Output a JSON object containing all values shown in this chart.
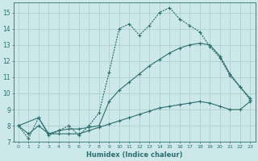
{
  "xlabel": "Humidex (Indice chaleur)",
  "bg_color": "#cce8e8",
  "grid_color": "#aacccc",
  "line_color": "#2d6e6e",
  "xlim": [
    -0.5,
    23.5
  ],
  "ylim": [
    7.0,
    15.6
  ],
  "xticks": [
    0,
    1,
    2,
    3,
    4,
    5,
    6,
    7,
    8,
    9,
    10,
    11,
    12,
    13,
    14,
    15,
    16,
    17,
    18,
    19,
    20,
    21,
    22,
    23
  ],
  "yticks": [
    7,
    8,
    9,
    10,
    11,
    12,
    13,
    14,
    15
  ],
  "series1_x": [
    0,
    1,
    2,
    3,
    4,
    5,
    6,
    7,
    8,
    9,
    10,
    11,
    12,
    13,
    14,
    15,
    16,
    17,
    18,
    19,
    20,
    21,
    22,
    23
  ],
  "series1_y": [
    8.0,
    7.2,
    8.5,
    7.4,
    7.7,
    8.0,
    7.4,
    8.0,
    8.8,
    11.3,
    14.0,
    14.3,
    13.6,
    14.2,
    15.0,
    15.3,
    14.6,
    14.2,
    13.8,
    12.9,
    12.2,
    11.1,
    10.4,
    9.6
  ],
  "series2_x": [
    0,
    2,
    3,
    4,
    5,
    6,
    7,
    8,
    9,
    10,
    11,
    12,
    13,
    14,
    15,
    16,
    17,
    18,
    19,
    20,
    21,
    22,
    23
  ],
  "series2_y": [
    8.0,
    8.5,
    7.5,
    7.7,
    7.8,
    7.8,
    7.9,
    8.0,
    9.5,
    10.2,
    10.7,
    11.2,
    11.7,
    12.1,
    12.5,
    12.8,
    13.0,
    13.1,
    13.0,
    12.3,
    11.2,
    10.4,
    9.7
  ],
  "series3_x": [
    0,
    1,
    2,
    3,
    4,
    5,
    6,
    7,
    8,
    9,
    10,
    11,
    12,
    13,
    14,
    15,
    16,
    17,
    18,
    19,
    20,
    21,
    22,
    23
  ],
  "series3_y": [
    8.0,
    7.5,
    8.0,
    7.5,
    7.5,
    7.5,
    7.5,
    7.7,
    7.9,
    8.1,
    8.3,
    8.5,
    8.7,
    8.9,
    9.1,
    9.2,
    9.3,
    9.4,
    9.5,
    9.4,
    9.2,
    9.0,
    9.0,
    9.5
  ]
}
